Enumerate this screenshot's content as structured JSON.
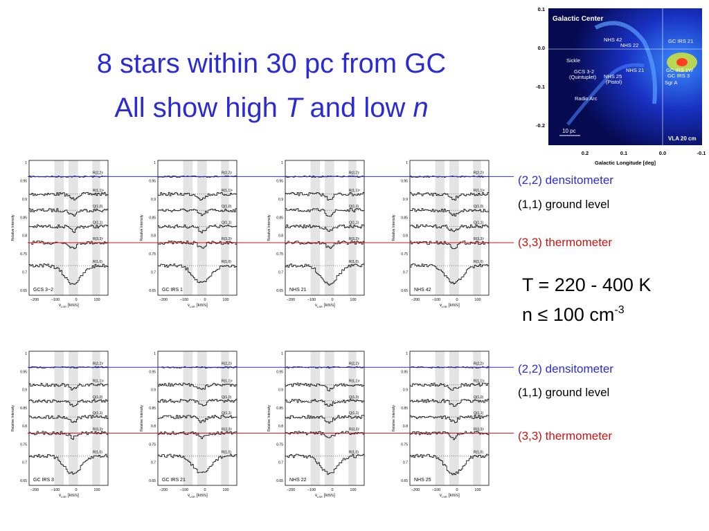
{
  "title": {
    "line1": "8 stars within 30 pc from GC",
    "line2_a": "All show high ",
    "line2_t": "T",
    "line2_b": " and low ",
    "line2_n": "n"
  },
  "annotations": {
    "top": {
      "densitometer": "(2,2) densitometer",
      "ground": "(1,1) ground level",
      "thermometer": "(3,3) thermometer"
    },
    "bottom": {
      "densitometer": "(2,2) densitometer",
      "ground": "(1,1) ground level",
      "thermometer": "(3,3) thermometer"
    }
  },
  "conditions": {
    "temperature": "T = 220 - 400 K",
    "density": "n ≤ 100 cm",
    "density_exp": "-3"
  },
  "panels": {
    "top": [
      {
        "name": "GCS 3−2"
      },
      {
        "name": "GC IRS 1"
      },
      {
        "name": "NHS 21"
      },
      {
        "name": "NHS 42"
      }
    ],
    "bottom": [
      {
        "name": "GC IRS 3"
      },
      {
        "name": "GC IRS 21"
      },
      {
        "name": "NHS 22"
      },
      {
        "name": "NHS 25"
      }
    ]
  },
  "panel_axes": {
    "x_label_v": "v",
    "x_label_sub": "LSR",
    "x_label_unit": "[km/s]",
    "y_label": "Relative Intensity",
    "x_ticks": [
      "−200",
      "−100",
      "0",
      "100"
    ],
    "y_ticks": [
      "1",
      "0.95",
      "0.9",
      "0.85",
      "0.8",
      "0.75",
      "0.7",
      "0.65"
    ],
    "line_labels": [
      "R(2,2)ˡ",
      "R(1,1)ᵘ",
      "Q(1,0)",
      "Q(1,1)",
      "R(3,3)ˡ",
      "R(1,0)"
    ]
  },
  "map": {
    "title": "Galactic Center",
    "labels": [
      "NHS 42",
      "NHS 22",
      "NHS 21",
      "NHS 25",
      "(Pistol)",
      "GCS 3-2",
      "(Quintuplet)",
      "Sickle",
      "GC IRS 21",
      "GC IRS 1W",
      "GC IRS 3",
      "Sgr A",
      "Radio Arc"
    ],
    "scale": "10 pc",
    "survey": "VLA 20 cm",
    "y_ticks": [
      "0.1",
      "0.0",
      "-0.1",
      "-0.2"
    ],
    "x_ticks": [
      "0.2",
      "0.1",
      "0.0",
      "-0.1"
    ],
    "x_label": "Galactic Longitude [deg]"
  }
}
